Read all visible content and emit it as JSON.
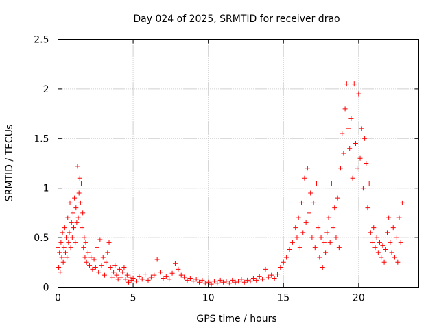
{
  "chart_data": {
    "type": "scatter",
    "title": "Day 024 of 2025, SRMTID for receiver drao",
    "xlabel": "GPS time / hours",
    "ylabel": "SRMTID / TECUs",
    "xlim": [
      0,
      24
    ],
    "ylim": [
      0,
      2.5
    ],
    "xticks": [
      0,
      5,
      10,
      15,
      20
    ],
    "xtick_labels": [
      "0",
      "5",
      "10",
      "15",
      "20"
    ],
    "yticks": [
      0,
      0.5,
      1,
      1.5,
      2,
      2.5
    ],
    "ytick_labels": [
      "0",
      "0.5",
      "1",
      "1.5",
      "2",
      "2.5"
    ],
    "grid": true,
    "marker": "+",
    "series": [
      {
        "name": "SRMTID",
        "color": "#ff0000",
        "points": [
          [
            0.0,
            0.4
          ],
          [
            0.05,
            0.2
          ],
          [
            0.1,
            0.35
          ],
          [
            0.15,
            0.15
          ],
          [
            0.2,
            0.45
          ],
          [
            0.25,
            0.3
          ],
          [
            0.3,
            0.55
          ],
          [
            0.35,
            0.25
          ],
          [
            0.4,
            0.4
          ],
          [
            0.45,
            0.6
          ],
          [
            0.5,
            0.35
          ],
          [
            0.55,
            0.5
          ],
          [
            0.6,
            0.3
          ],
          [
            0.65,
            0.7
          ],
          [
            0.7,
            0.45
          ],
          [
            0.75,
            0.55
          ],
          [
            0.8,
            0.85
          ],
          [
            0.85,
            0.4
          ],
          [
            0.9,
            0.65
          ],
          [
            0.95,
            0.5
          ],
          [
            1.0,
            0.75
          ],
          [
            1.05,
            0.6
          ],
          [
            1.1,
            0.9
          ],
          [
            1.15,
            0.45
          ],
          [
            1.2,
            0.8
          ],
          [
            1.25,
            0.65
          ],
          [
            1.3,
            1.22
          ],
          [
            1.35,
            0.7
          ],
          [
            1.4,
            0.95
          ],
          [
            1.45,
            1.1
          ],
          [
            1.5,
            0.85
          ],
          [
            1.55,
            1.05
          ],
          [
            1.6,
            0.6
          ],
          [
            1.65,
            0.75
          ],
          [
            1.7,
            0.4
          ],
          [
            1.75,
            0.5
          ],
          [
            1.8,
            0.3
          ],
          [
            1.85,
            0.45
          ],
          [
            1.9,
            0.25
          ],
          [
            2.0,
            0.35
          ],
          [
            2.1,
            0.22
          ],
          [
            2.2,
            0.3
          ],
          [
            2.3,
            0.18
          ],
          [
            2.4,
            0.28
          ],
          [
            2.5,
            0.2
          ],
          [
            2.6,
            0.4
          ],
          [
            2.7,
            0.15
          ],
          [
            2.8,
            0.48
          ],
          [
            2.9,
            0.22
          ],
          [
            3.0,
            0.3
          ],
          [
            3.1,
            0.12
          ],
          [
            3.2,
            0.25
          ],
          [
            3.3,
            0.35
          ],
          [
            3.4,
            0.45
          ],
          [
            3.5,
            0.2
          ],
          [
            3.6,
            0.1
          ],
          [
            3.7,
            0.15
          ],
          [
            3.8,
            0.22
          ],
          [
            3.9,
            0.12
          ],
          [
            4.0,
            0.08
          ],
          [
            4.1,
            0.18
          ],
          [
            4.2,
            0.1
          ],
          [
            4.3,
            0.15
          ],
          [
            4.4,
            0.2
          ],
          [
            4.5,
            0.08
          ],
          [
            4.6,
            0.12
          ],
          [
            4.7,
            0.05
          ],
          [
            4.8,
            0.1
          ],
          [
            4.9,
            0.07
          ],
          [
            5.0,
            0.09
          ],
          [
            5.2,
            0.06
          ],
          [
            5.4,
            0.11
          ],
          [
            5.6,
            0.08
          ],
          [
            5.8,
            0.13
          ],
          [
            6.0,
            0.07
          ],
          [
            6.2,
            0.1
          ],
          [
            6.4,
            0.12
          ],
          [
            6.6,
            0.28
          ],
          [
            6.8,
            0.15
          ],
          [
            7.0,
            0.09
          ],
          [
            7.2,
            0.11
          ],
          [
            7.4,
            0.08
          ],
          [
            7.6,
            0.14
          ],
          [
            7.8,
            0.24
          ],
          [
            8.0,
            0.18
          ],
          [
            8.2,
            0.12
          ],
          [
            8.4,
            0.1
          ],
          [
            8.6,
            0.07
          ],
          [
            8.8,
            0.09
          ],
          [
            9.0,
            0.06
          ],
          [
            9.2,
            0.08
          ],
          [
            9.4,
            0.05
          ],
          [
            9.6,
            0.07
          ],
          [
            9.8,
            0.04
          ],
          [
            10.0,
            0.05
          ],
          [
            10.2,
            0.03
          ],
          [
            10.4,
            0.06
          ],
          [
            10.6,
            0.04
          ],
          [
            10.8,
            0.07
          ],
          [
            11.0,
            0.05
          ],
          [
            11.2,
            0.06
          ],
          [
            11.4,
            0.04
          ],
          [
            11.6,
            0.07
          ],
          [
            11.8,
            0.05
          ],
          [
            12.0,
            0.06
          ],
          [
            12.2,
            0.08
          ],
          [
            12.4,
            0.05
          ],
          [
            12.6,
            0.07
          ],
          [
            12.8,
            0.06
          ],
          [
            13.0,
            0.09
          ],
          [
            13.2,
            0.07
          ],
          [
            13.4,
            0.11
          ],
          [
            13.6,
            0.08
          ],
          [
            13.8,
            0.18
          ],
          [
            14.0,
            0.1
          ],
          [
            14.2,
            0.12
          ],
          [
            14.4,
            0.09
          ],
          [
            14.6,
            0.13
          ],
          [
            14.8,
            0.2
          ],
          [
            15.0,
            0.25
          ],
          [
            15.2,
            0.3
          ],
          [
            15.4,
            0.38
          ],
          [
            15.6,
            0.45
          ],
          [
            15.8,
            0.6
          ],
          [
            15.9,
            0.5
          ],
          [
            16.0,
            0.7
          ],
          [
            16.1,
            0.4
          ],
          [
            16.2,
            0.85
          ],
          [
            16.3,
            0.55
          ],
          [
            16.4,
            1.1
          ],
          [
            16.5,
            0.65
          ],
          [
            16.6,
            1.2
          ],
          [
            16.7,
            0.75
          ],
          [
            16.8,
            0.95
          ],
          [
            16.9,
            0.5
          ],
          [
            17.0,
            0.85
          ],
          [
            17.1,
            0.4
          ],
          [
            17.2,
            1.05
          ],
          [
            17.3,
            0.6
          ],
          [
            17.4,
            0.3
          ],
          [
            17.5,
            0.5
          ],
          [
            17.6,
            0.2
          ],
          [
            17.7,
            0.45
          ],
          [
            17.8,
            0.35
          ],
          [
            17.9,
            0.55
          ],
          [
            18.0,
            0.7
          ],
          [
            18.1,
            0.45
          ],
          [
            18.2,
            1.05
          ],
          [
            18.3,
            0.6
          ],
          [
            18.4,
            0.8
          ],
          [
            18.5,
            0.5
          ],
          [
            18.6,
            0.9
          ],
          [
            18.7,
            0.4
          ],
          [
            18.8,
            1.2
          ],
          [
            18.9,
            1.55
          ],
          [
            19.0,
            1.35
          ],
          [
            19.1,
            1.8
          ],
          [
            19.2,
            2.05
          ],
          [
            19.3,
            1.6
          ],
          [
            19.4,
            1.4
          ],
          [
            19.5,
            1.7
          ],
          [
            19.6,
            1.1
          ],
          [
            19.7,
            2.05
          ],
          [
            19.8,
            1.45
          ],
          [
            19.9,
            1.2
          ],
          [
            20.0,
            1.95
          ],
          [
            20.1,
            1.3
          ],
          [
            20.2,
            1.6
          ],
          [
            20.3,
            1.0
          ],
          [
            20.4,
            1.5
          ],
          [
            20.5,
            1.25
          ],
          [
            20.6,
            0.8
          ],
          [
            20.7,
            1.05
          ],
          [
            20.8,
            0.55
          ],
          [
            20.9,
            0.45
          ],
          [
            21.0,
            0.6
          ],
          [
            21.1,
            0.4
          ],
          [
            21.2,
            0.5
          ],
          [
            21.3,
            0.35
          ],
          [
            21.4,
            0.45
          ],
          [
            21.5,
            0.3
          ],
          [
            21.6,
            0.42
          ],
          [
            21.7,
            0.25
          ],
          [
            21.8,
            0.38
          ],
          [
            21.9,
            0.55
          ],
          [
            22.0,
            0.7
          ],
          [
            22.1,
            0.45
          ],
          [
            22.2,
            0.35
          ],
          [
            22.3,
            0.6
          ],
          [
            22.4,
            0.3
          ],
          [
            22.5,
            0.5
          ],
          [
            22.6,
            0.25
          ],
          [
            22.7,
            0.7
          ],
          [
            22.8,
            0.45
          ],
          [
            22.9,
            0.85
          ]
        ]
      }
    ]
  }
}
